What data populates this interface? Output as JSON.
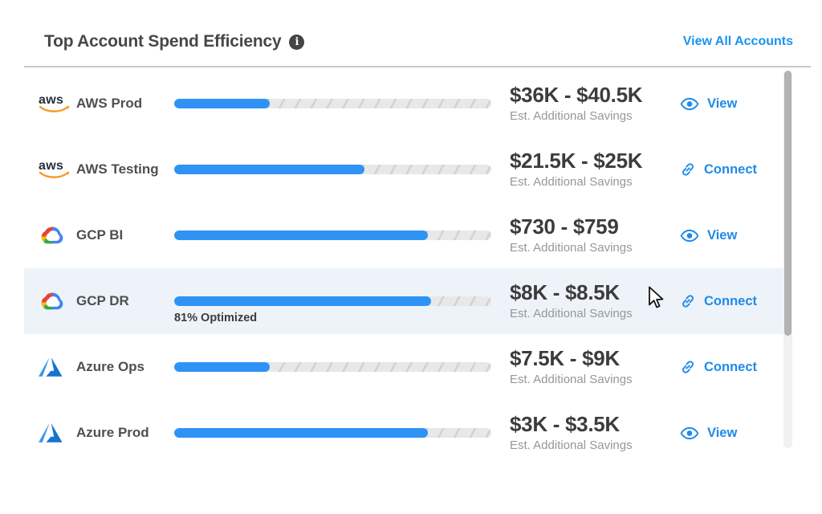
{
  "header": {
    "title": "Top Account Spend Efficiency",
    "info_icon": "info-icon",
    "link_label": "View All Accounts"
  },
  "logos": {
    "aws_text": "aws"
  },
  "colors": {
    "accent_blue": "#2f93f6",
    "action_blue": "#1f8be8",
    "link_blue": "#1b93f0",
    "row_highlight": "#eef3fa",
    "track_gray": "#e8e8e8",
    "aws_orange": "#f7981f"
  },
  "rows": [
    {
      "provider": "aws",
      "icon": "aws-icon",
      "name": "AWS Prod",
      "progress_pct": 30,
      "savings_range": "$36K - $40.5K",
      "sublabel": "Est. Additional Savings",
      "action": {
        "label": "View",
        "icon": "eye-icon"
      },
      "highlighted": false
    },
    {
      "provider": "aws",
      "icon": "aws-icon",
      "name": "AWS Testing",
      "progress_pct": 60,
      "savings_range": "$21.5K - $25K",
      "sublabel": "Est. Additional Savings",
      "action": {
        "label": "Connect",
        "icon": "link-icon"
      },
      "highlighted": false
    },
    {
      "provider": "gcp",
      "icon": "gcp-icon",
      "name": "GCP BI",
      "progress_pct": 80,
      "savings_range": "$730 - $759",
      "sublabel": "Est. Additional Savings",
      "action": {
        "label": "View",
        "icon": "eye-icon"
      },
      "highlighted": false
    },
    {
      "provider": "gcp",
      "icon": "gcp-icon",
      "name": "GCP DR",
      "progress_pct": 81,
      "progress_label": "81% Optimized",
      "savings_range": "$8K - $8.5K",
      "sublabel": "Est. Additional Savings",
      "action": {
        "label": "Connect",
        "icon": "link-icon"
      },
      "highlighted": true
    },
    {
      "provider": "azure",
      "icon": "azure-icon",
      "name": "Azure Ops",
      "progress_pct": 30,
      "savings_range": "$7.5K - $9K",
      "sublabel": "Est. Additional Savings",
      "action": {
        "label": "Connect",
        "icon": "link-icon"
      },
      "highlighted": false
    },
    {
      "provider": "azure",
      "icon": "azure-icon",
      "name": "Azure Prod",
      "progress_pct": 80,
      "savings_range": "$3K - $3.5K",
      "sublabel": "Est. Additional Savings",
      "action": {
        "label": "View",
        "icon": "eye-icon"
      },
      "highlighted": false
    }
  ]
}
